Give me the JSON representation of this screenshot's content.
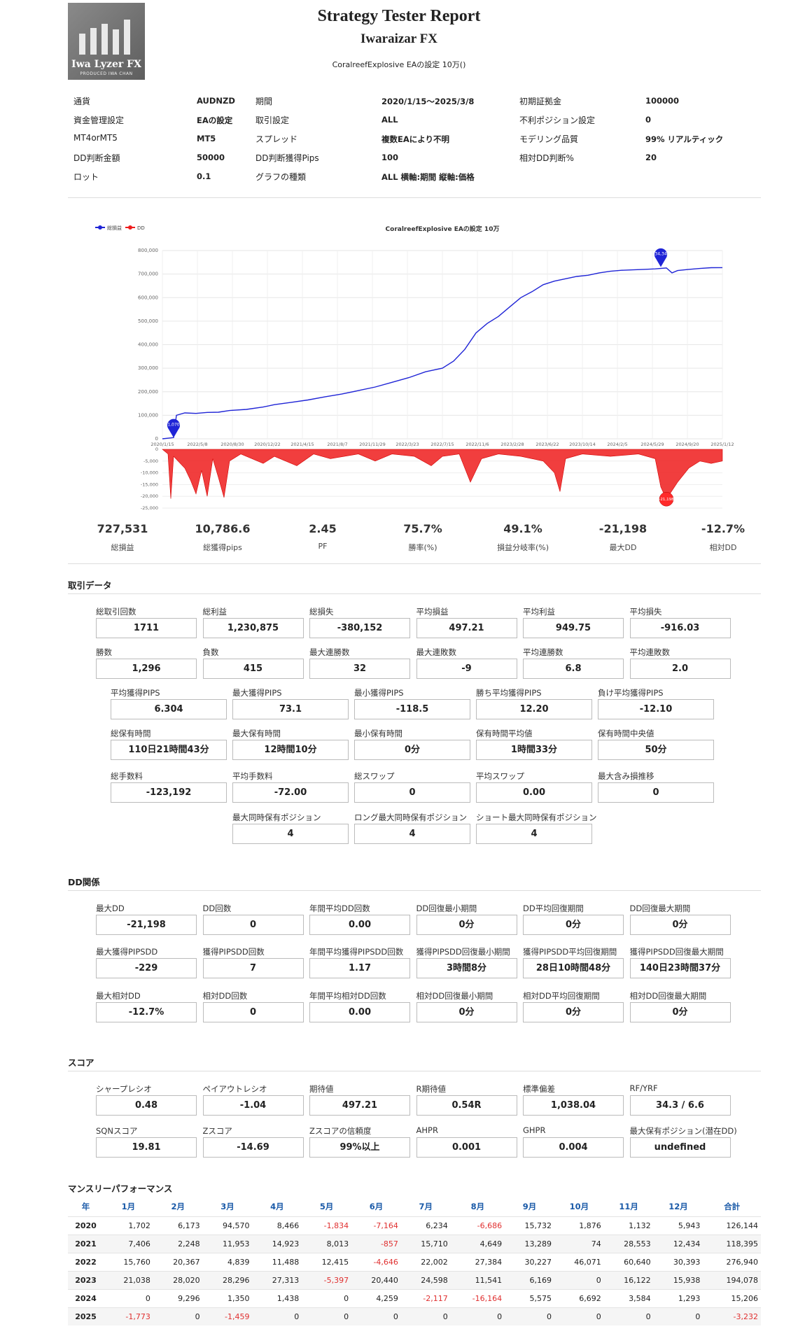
{
  "header": {
    "logo_text": "Iwa Lyzer FX",
    "logo_sub": "PRODUCED  IWA CHAN",
    "title": "Strategy Tester Report",
    "subtitle": "Iwaraizar FX",
    "setting": "CoralreefExplosive EAの設定 10万()"
  },
  "info": [
    {
      "label": "通貨",
      "value": "AUDNZD"
    },
    {
      "label": "期間",
      "value": "2020/1/15～2025/3/8"
    },
    {
      "label": "初期証拠金",
      "value": "100000"
    },
    {
      "label": "資金管理設定",
      "value": "EAの設定"
    },
    {
      "label": "取引設定",
      "value": "ALL"
    },
    {
      "label": "不利ポジション設定",
      "value": "0"
    },
    {
      "label": "MT4orMT5",
      "value": "MT5"
    },
    {
      "label": "スプレッド",
      "value": "複数EAにより不明"
    },
    {
      "label": "モデリング品質",
      "value": "99% リアルティック"
    },
    {
      "label": "DD判断金額",
      "value": "50000"
    },
    {
      "label": "DD判断獲得Pips",
      "value": "100"
    },
    {
      "label": "相対DD判断%",
      "value": "20"
    },
    {
      "label": "ロット",
      "value": "0.1"
    },
    {
      "label": "グラフの種類",
      "value": "ALL 横軸:期間 縦軸:価格"
    }
  ],
  "chart_data": {
    "type": "line",
    "title": "CoralreefExplosive EAの設定 10万",
    "legend": [
      "総損益",
      "DD"
    ],
    "legend_position": "top-left",
    "x_ticks": [
      "2020/1/15",
      "2022/5/8",
      "2020/8/30",
      "2020/12/22",
      "2021/4/15",
      "2021/8/7",
      "2021/11/29",
      "2022/3/23",
      "2022/7/15",
      "2022/11/6",
      "2023/2/28",
      "2023/6/22",
      "2023/10/14",
      "2024/2/5",
      "2024/5/29",
      "2024/9/20",
      "2025/1/12"
    ],
    "equity_y_ticks": [
      "800,000",
      "700,000",
      "600,000",
      "500,000",
      "400,000",
      "300,000",
      "200,000",
      "100,000",
      "0"
    ],
    "equity_ylim": [
      0,
      800000
    ],
    "dd_y_ticks": [
      "0",
      "-5,000",
      "-10,000",
      "-15,000",
      "-20,000",
      "-25,000"
    ],
    "dd_ylim": [
      -25000,
      0
    ],
    "color_equity": "#1f24d6",
    "color_dd": "#ee1c1c",
    "equity": [
      [
        0,
        0
      ],
      [
        0.02,
        5000
      ],
      [
        0.025,
        100000
      ],
      [
        0.04,
        110000
      ],
      [
        0.06,
        108000
      ],
      [
        0.08,
        112000
      ],
      [
        0.1,
        113000
      ],
      [
        0.12,
        120000
      ],
      [
        0.15,
        125000
      ],
      [
        0.18,
        135000
      ],
      [
        0.2,
        145000
      ],
      [
        0.23,
        155000
      ],
      [
        0.26,
        165000
      ],
      [
        0.29,
        178000
      ],
      [
        0.32,
        190000
      ],
      [
        0.35,
        205000
      ],
      [
        0.38,
        220000
      ],
      [
        0.41,
        240000
      ],
      [
        0.44,
        260000
      ],
      [
        0.47,
        285000
      ],
      [
        0.5,
        300000
      ],
      [
        0.52,
        330000
      ],
      [
        0.54,
        380000
      ],
      [
        0.56,
        450000
      ],
      [
        0.58,
        490000
      ],
      [
        0.6,
        520000
      ],
      [
        0.62,
        560000
      ],
      [
        0.64,
        600000
      ],
      [
        0.66,
        625000
      ],
      [
        0.68,
        655000
      ],
      [
        0.7,
        670000
      ],
      [
        0.72,
        680000
      ],
      [
        0.74,
        690000
      ],
      [
        0.76,
        695000
      ],
      [
        0.78,
        705000
      ],
      [
        0.8,
        712000
      ],
      [
        0.82,
        716000
      ],
      [
        0.84,
        718000
      ],
      [
        0.86,
        720000
      ],
      [
        0.88,
        722000
      ],
      [
        0.9,
        726000
      ],
      [
        0.91,
        705000
      ],
      [
        0.92,
        715000
      ],
      [
        0.94,
        720000
      ],
      [
        0.96,
        724000
      ],
      [
        0.98,
        727000
      ],
      [
        1.0,
        727531
      ]
    ],
    "dd": [
      [
        0,
        0
      ],
      [
        0.01,
        -2000
      ],
      [
        0.015,
        -21000
      ],
      [
        0.02,
        -3000
      ],
      [
        0.04,
        -8000
      ],
      [
        0.05,
        -13000
      ],
      [
        0.06,
        -19000
      ],
      [
        0.07,
        -9000
      ],
      [
        0.08,
        -20000
      ],
      [
        0.09,
        -4000
      ],
      [
        0.1,
        -12000
      ],
      [
        0.11,
        -20500
      ],
      [
        0.12,
        -5000
      ],
      [
        0.14,
        -2000
      ],
      [
        0.18,
        -6000
      ],
      [
        0.2,
        -3000
      ],
      [
        0.24,
        -7000
      ],
      [
        0.27,
        -2000
      ],
      [
        0.3,
        -4000
      ],
      [
        0.35,
        -2000
      ],
      [
        0.38,
        -5000
      ],
      [
        0.41,
        -2000
      ],
      [
        0.45,
        -3000
      ],
      [
        0.48,
        -7000
      ],
      [
        0.5,
        -3000
      ],
      [
        0.53,
        -2000
      ],
      [
        0.55,
        -14000
      ],
      [
        0.57,
        -4000
      ],
      [
        0.6,
        -2000
      ],
      [
        0.64,
        -3000
      ],
      [
        0.68,
        -5000
      ],
      [
        0.7,
        -10000
      ],
      [
        0.71,
        -18000
      ],
      [
        0.72,
        -4000
      ],
      [
        0.75,
        -2000
      ],
      [
        0.8,
        -3000
      ],
      [
        0.85,
        -2000
      ],
      [
        0.88,
        -4000
      ],
      [
        0.89,
        -16000
      ],
      [
        0.9,
        -21198
      ],
      [
        0.92,
        -14000
      ],
      [
        0.94,
        -8000
      ],
      [
        0.96,
        -5000
      ],
      [
        0.98,
        -6000
      ],
      [
        1.0,
        -5000
      ]
    ],
    "markers": [
      {
        "label": "1,070",
        "x": 0.02,
        "y": 5000
      },
      {
        "label": "734,340",
        "x": 0.89,
        "y": 730000
      }
    ],
    "dd_marker": {
      "label": "-21,198",
      "x": 0.9,
      "y": -21198
    }
  },
  "summary": [
    {
      "value": "727,531",
      "label": "総損益"
    },
    {
      "value": "10,786.6",
      "label": "総獲得pips"
    },
    {
      "value": "2.45",
      "label": "PF"
    },
    {
      "value": "75.7%",
      "label": "勝率(%)"
    },
    {
      "value": "49.1%",
      "label": "損益分岐率(%)"
    },
    {
      "value": "-21,198",
      "label": "最大DD"
    },
    {
      "value": "-12.7%",
      "label": "相対DD"
    }
  ],
  "trade": {
    "title": "取引データ",
    "row1": [
      {
        "label": "総取引回数",
        "value": "1711"
      },
      {
        "label": "総利益",
        "value": "1,230,875"
      },
      {
        "label": "総損失",
        "value": "-380,152"
      },
      {
        "label": "平均損益",
        "value": "497.21"
      },
      {
        "label": "平均利益",
        "value": "949.75"
      },
      {
        "label": "平均損失",
        "value": "-916.03"
      }
    ],
    "row2": [
      {
        "label": "勝数",
        "value": "1,296"
      },
      {
        "label": "負数",
        "value": "415"
      },
      {
        "label": "最大連勝数",
        "value": "32"
      },
      {
        "label": "最大連敗数",
        "value": "-9"
      },
      {
        "label": "平均連勝数",
        "value": "6.8"
      },
      {
        "label": "平均連敗数",
        "value": "2.0"
      }
    ],
    "row3": [
      {
        "label": "平均獲得PIPS",
        "value": "6.304"
      },
      {
        "label": "最大獲得PIPS",
        "value": "73.1"
      },
      {
        "label": "最小獲得PIPS",
        "value": "-118.5"
      },
      {
        "label": "勝ち平均獲得PIPS",
        "value": "12.20"
      },
      {
        "label": "負け平均獲得PIPS",
        "value": "-12.10"
      }
    ],
    "row4": [
      {
        "label": "総保有時間",
        "value": "110日21時間43分"
      },
      {
        "label": "最大保有時間",
        "value": "12時間10分"
      },
      {
        "label": "最小保有時間",
        "value": "0分"
      },
      {
        "label": "保有時間平均値",
        "value": "1時間33分"
      },
      {
        "label": "保有時間中央値",
        "value": "50分"
      }
    ],
    "row5": [
      {
        "label": "総手数料",
        "value": "-123,192"
      },
      {
        "label": "平均手数料",
        "value": "-72.00"
      },
      {
        "label": "総スワップ",
        "value": "0"
      },
      {
        "label": "平均スワップ",
        "value": "0.00"
      },
      {
        "label": "最大含み損推移",
        "value": "0"
      }
    ],
    "row6": [
      {
        "label": "最大同時保有ポジション",
        "value": "4"
      },
      {
        "label": "ロング最大同時保有ポジション",
        "value": "4"
      },
      {
        "label": "ショート最大同時保有ポジション",
        "value": "4"
      }
    ]
  },
  "dd": {
    "title": "DD関係",
    "row1": [
      {
        "label": "最大DD",
        "value": "-21,198"
      },
      {
        "label": "DD回数",
        "value": "0"
      },
      {
        "label": "年間平均DD回数",
        "value": "0.00"
      },
      {
        "label": "DD回復最小期間",
        "value": "0分"
      },
      {
        "label": "DD平均回復期間",
        "value": "0分"
      },
      {
        "label": "DD回復最大期間",
        "value": "0分"
      }
    ],
    "row2": [
      {
        "label": "最大獲得PIPSDD",
        "value": "-229"
      },
      {
        "label": "獲得PIPSDD回数",
        "value": "7"
      },
      {
        "label": "年間平均獲得PIPSDD回数",
        "value": "1.17"
      },
      {
        "label": "獲得PIPSDD回復最小期間",
        "value": "3時間8分"
      },
      {
        "label": "獲得PIPSDD平均回復期間",
        "value": "28日10時間48分"
      },
      {
        "label": "獲得PIPSDD回復最大期間",
        "value": "140日23時間37分"
      }
    ],
    "row3": [
      {
        "label": "最大相対DD",
        "value": "-12.7%"
      },
      {
        "label": "相対DD回数",
        "value": "0"
      },
      {
        "label": "年間平均相対DD回数",
        "value": "0.00"
      },
      {
        "label": "相対DD回復最小期間",
        "value": "0分"
      },
      {
        "label": "相対DD平均回復期間",
        "value": "0分"
      },
      {
        "label": "相対DD回復最大期間",
        "value": "0分"
      }
    ]
  },
  "score": {
    "title": "スコア",
    "row1": [
      {
        "label": "シャープレシオ",
        "value": "0.48"
      },
      {
        "label": "ペイアウトレシオ",
        "value": "-1.04"
      },
      {
        "label": "期待値",
        "value": "497.21"
      },
      {
        "label": "R期待値",
        "value": "0.54R"
      },
      {
        "label": "標準偏差",
        "value": "1,038.04"
      },
      {
        "label": "RF/YRF",
        "value": "34.3 / 6.6"
      }
    ],
    "row2": [
      {
        "label": "SQNスコア",
        "value": "19.81"
      },
      {
        "label": "Zスコア",
        "value": "-14.69"
      },
      {
        "label": "Zスコアの信頼度",
        "value": "99%以上"
      },
      {
        "label": "AHPR",
        "value": "0.001"
      },
      {
        "label": "GHPR",
        "value": "0.004"
      },
      {
        "label": "最大保有ポジション(潜在DD)",
        "value": "undefined"
      }
    ]
  },
  "monthly": {
    "title": "マンスリーパフォーマンス",
    "headers": [
      "年",
      "1月",
      "2月",
      "3月",
      "4月",
      "5月",
      "6月",
      "7月",
      "8月",
      "9月",
      "10月",
      "11月",
      "12月",
      "合計"
    ],
    "rows": [
      [
        "2020",
        "1,702",
        "6,173",
        "94,570",
        "8,466",
        "-1,834",
        "-7,164",
        "6,234",
        "-6,686",
        "15,732",
        "1,876",
        "1,132",
        "5,943",
        "126,144"
      ],
      [
        "2021",
        "7,406",
        "2,248",
        "11,953",
        "14,923",
        "8,013",
        "-857",
        "15,710",
        "4,649",
        "13,289",
        "74",
        "28,553",
        "12,434",
        "118,395"
      ],
      [
        "2022",
        "15,760",
        "20,367",
        "4,839",
        "11,488",
        "12,415",
        "-4,646",
        "22,002",
        "27,384",
        "30,227",
        "46,071",
        "60,640",
        "30,393",
        "276,940"
      ],
      [
        "2023",
        "21,038",
        "28,020",
        "28,296",
        "27,313",
        "-5,397",
        "20,440",
        "24,598",
        "11,541",
        "6,169",
        "0",
        "16,122",
        "15,938",
        "194,078"
      ],
      [
        "2024",
        "0",
        "9,296",
        "1,350",
        "1,438",
        "0",
        "4,259",
        "-2,117",
        "-16,164",
        "5,575",
        "6,692",
        "3,584",
        "1,293",
        "15,206"
      ],
      [
        "2025",
        "-1,773",
        "0",
        "-1,459",
        "0",
        "0",
        "0",
        "0",
        "0",
        "0",
        "0",
        "0",
        "0",
        "-3,232"
      ]
    ]
  }
}
